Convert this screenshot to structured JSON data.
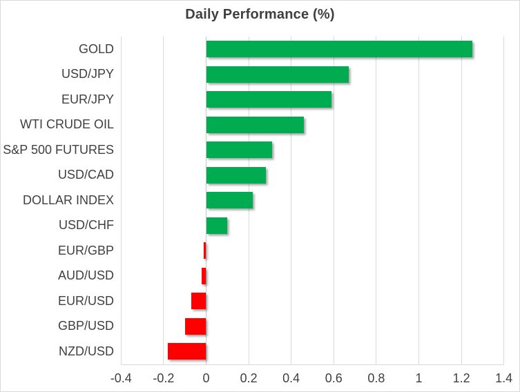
{
  "chart_data": {
    "type": "bar",
    "orientation": "horizontal",
    "title": "Daily Performance (%)",
    "categories": [
      "GOLD",
      "USD/JPY",
      "EUR/JPY",
      "WTI CRUDE OIL",
      "S&P 500 FUTURES",
      "USD/CAD",
      "DOLLAR INDEX",
      "USD/CHF",
      "EUR/GBP",
      "AUD/USD",
      "EUR/USD",
      "GBP/USD",
      "NZD/USD"
    ],
    "values": [
      1.25,
      0.67,
      0.59,
      0.46,
      0.31,
      0.28,
      0.22,
      0.1,
      -0.01,
      -0.02,
      -0.07,
      -0.1,
      -0.18
    ],
    "xlim": [
      -0.4,
      1.4
    ],
    "xticks": [
      -0.4,
      -0.2,
      0,
      0.2,
      0.4,
      0.6,
      0.8,
      1,
      1.2,
      1.4
    ],
    "xtick_labels": [
      "-0.4",
      "-0.2",
      "0",
      "0.2",
      "0.4",
      "0.6",
      "0.8",
      "1",
      "1.2",
      "1.4"
    ],
    "grid": true,
    "legend": "none",
    "xlabel": "",
    "ylabel": ""
  },
  "colors": {
    "positive": "#00AC4F",
    "negative": "#FF0000",
    "gridline": "#D9D9D9",
    "zero_axis": "#C6C6C6",
    "text": "#3F3F3F",
    "background": "#FFFFFF",
    "border": "#D9D9D9"
  }
}
